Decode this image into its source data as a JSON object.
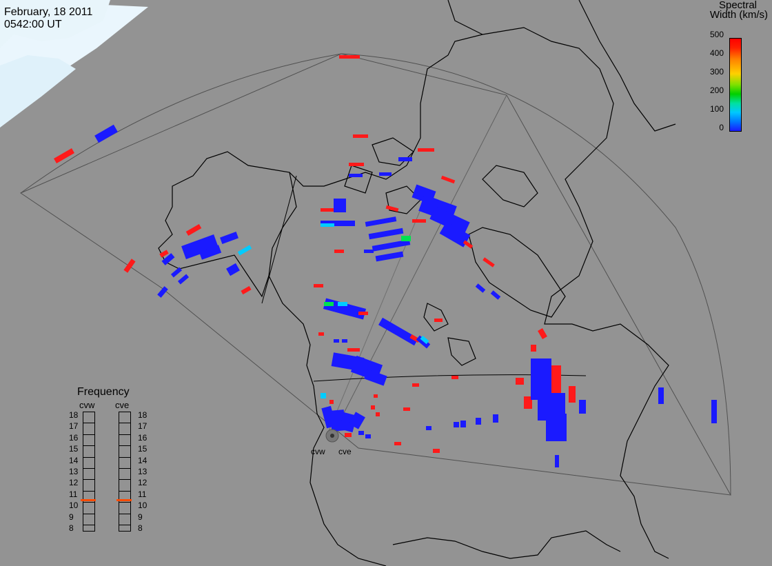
{
  "header": {
    "date": "February, 18 2011",
    "time": "0542:00 UT"
  },
  "colorbar": {
    "title_line1": "Spectral",
    "title_line2": "Width (km/s)",
    "ticks": [
      "500",
      "400",
      "300",
      "200",
      "100",
      "0"
    ],
    "min": 0,
    "max": 500
  },
  "frequency_panel": {
    "title": "Frequency",
    "columns": [
      {
        "label": "cvw",
        "selected": 11
      },
      {
        "label": "cve",
        "selected": 11
      }
    ],
    "levels": [
      "18",
      "17",
      "16",
      "15",
      "14",
      "13",
      "12",
      "11",
      "10",
      "9",
      "8"
    ],
    "marker_color": "#ff4a00"
  },
  "radar_labels": {
    "west": "cvw",
    "east": "cve"
  },
  "colors": {
    "background": "#939393",
    "low": "#1a1aff",
    "high": "#ff1a1a",
    "mid_cyan": "#00ccff",
    "mid_green": "#00e050",
    "lines": "#000000"
  }
}
